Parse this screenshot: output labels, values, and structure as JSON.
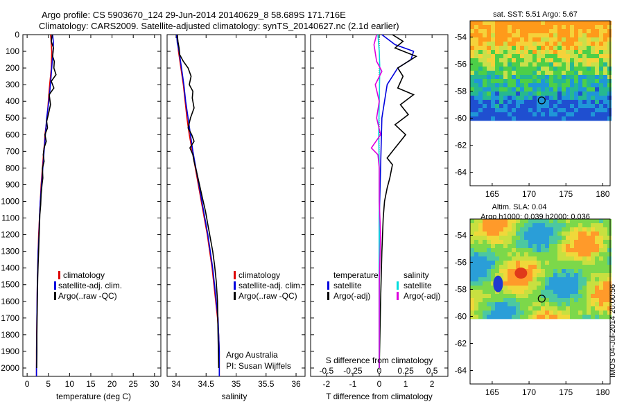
{
  "header": {
    "line1": "Argo profile: CS 5903670_124 29-Jun-2014 20140629_8 58.689S 171.716E",
    "line2": "Climatology: CARS2009. Satellite-adjusted climatology: synTS_20140627.nc (2.1d earlier)"
  },
  "footer": {
    "stamp": "IMOS 04-Jul-2014 20:00:56",
    "credit_line1": "Argo Australia",
    "credit_line2": "PI: Susan Wijffels"
  },
  "colors": {
    "climatology": "#dd0000",
    "satellite": "#0000dd",
    "argo": "#000000",
    "salinity_satellite": "#00dddd",
    "salinity_argo": "#dd00dd"
  },
  "chart_data": [
    {
      "type": "line",
      "panel": "temperature",
      "xlabel": "temperature (deg C)",
      "ylabel": "",
      "xlim": [
        -1,
        31.5
      ],
      "ylim": [
        2050,
        0
      ],
      "xticks": [
        "0",
        "5",
        "10",
        "15",
        "20",
        "25",
        "30"
      ],
      "yticks": [
        "0",
        "100",
        "200",
        "300",
        "400",
        "500",
        "600",
        "700",
        "800",
        "900",
        "1000",
        "1100",
        "1200",
        "1300",
        "1400",
        "1500",
        "1600",
        "1700",
        "1800",
        "1900",
        "2000"
      ],
      "legend": [
        "climatology",
        "satellite-adj. clim.",
        "Argo(..raw -QC)"
      ],
      "legend_position": "lower-center",
      "series": [
        {
          "name": "climatology",
          "color": "#dd0000",
          "x": [
            5.5,
            5.6,
            5.8,
            5.7,
            5.3,
            5.0,
            4.7,
            4.2,
            4.1,
            3.9,
            3.6,
            3.3,
            3.1,
            2.9,
            2.7,
            2.6,
            2.5,
            2.4,
            2.3,
            2.2,
            2.2,
            2.2
          ],
          "y": [
            0,
            20,
            100,
            200,
            300,
            400,
            500,
            600,
            650,
            700,
            800,
            900,
            1000,
            1100,
            1200,
            1300,
            1400,
            1500,
            1700,
            1900,
            2000,
            2050
          ]
        },
        {
          "name": "satellite-adj. clim.",
          "color": "#0000dd",
          "x": [
            6.0,
            6.2,
            6.1,
            5.8,
            5.5,
            5.1,
            4.6,
            4.3,
            4.0,
            3.7,
            3.4,
            3.1,
            2.9,
            2.8,
            2.6,
            2.5,
            2.4,
            2.3,
            2.25,
            2.2,
            2.2
          ],
          "y": [
            0,
            50,
            100,
            200,
            300,
            400,
            500,
            600,
            700,
            800,
            900,
            1000,
            1100,
            1200,
            1300,
            1400,
            1500,
            1700,
            1900,
            2000,
            2050
          ]
        },
        {
          "name": "Argo(..raw -QC)",
          "color": "#000000",
          "x": [
            5.9,
            5.7,
            6.2,
            6.0,
            6.4,
            6.3,
            6.8,
            5.7,
            6.3,
            5.2,
            5.5,
            5.0,
            4.6,
            4.8,
            4.2,
            4.5,
            4.0,
            3.8,
            4.0,
            3.6,
            3.7,
            3.5,
            3.3,
            3.2,
            3.0,
            2.9,
            2.8,
            2.7,
            2.6,
            2.5,
            2.45,
            2.4,
            2.35,
            2.3,
            2.3,
            2.25
          ],
          "y": [
            0,
            40,
            80,
            130,
            160,
            200,
            240,
            280,
            320,
            360,
            420,
            480,
            520,
            560,
            600,
            640,
            680,
            720,
            760,
            800,
            860,
            900,
            960,
            1020,
            1080,
            1150,
            1220,
            1300,
            1380,
            1460,
            1540,
            1620,
            1700,
            1800,
            1900,
            2000
          ]
        }
      ]
    },
    {
      "type": "line",
      "panel": "salinity",
      "xlabel": "salinity",
      "ylabel": "",
      "xlim": [
        33.85,
        36.15
      ],
      "ylim": [
        2050,
        0
      ],
      "xticks": [
        "34",
        "34.5",
        "35",
        "35.5",
        "36"
      ],
      "legend": [
        "climatology",
        "satellite-adj. clim.",
        "Argo(..raw -QC)"
      ],
      "legend_position": "lower-center",
      "series": [
        {
          "name": "climatology",
          "color": "#dd0000",
          "x": [
            34.02,
            34.03,
            34.04,
            34.08,
            34.12,
            34.15,
            34.18,
            34.22,
            34.27,
            34.32,
            34.37,
            34.42,
            34.47,
            34.52,
            34.56,
            34.6,
            34.63,
            34.66,
            34.69,
            34.71,
            34.72,
            34.72
          ],
          "y": [
            0,
            50,
            100,
            200,
            300,
            400,
            500,
            600,
            700,
            800,
            900,
            1000,
            1100,
            1200,
            1300,
            1400,
            1500,
            1600,
            1700,
            1800,
            1900,
            2050
          ]
        },
        {
          "name": "satellite-adj. clim.",
          "color": "#0000dd",
          "x": [
            34.01,
            34.02,
            34.05,
            34.09,
            34.13,
            34.16,
            34.2,
            34.24,
            34.28,
            34.33,
            34.38,
            34.43,
            34.48,
            34.53,
            34.57,
            34.61,
            34.64,
            34.67,
            34.7,
            34.71,
            34.72,
            34.72
          ],
          "y": [
            0,
            50,
            100,
            200,
            300,
            400,
            500,
            600,
            700,
            800,
            900,
            1000,
            1100,
            1200,
            1300,
            1400,
            1500,
            1600,
            1700,
            1800,
            1900,
            2050
          ]
        },
        {
          "name": "Argo(..raw -QC)",
          "color": "#000000",
          "x": [
            34.02,
            34.03,
            34.05,
            34.06,
            34.12,
            34.2,
            34.25,
            34.22,
            34.28,
            34.27,
            34.3,
            34.24,
            34.2,
            34.26,
            34.3,
            34.23,
            34.28,
            34.3,
            34.34,
            34.39,
            34.44,
            34.49,
            34.53,
            34.57,
            34.61,
            34.64,
            34.67,
            34.69,
            34.7,
            34.71
          ],
          "y": [
            0,
            40,
            80,
            120,
            160,
            200,
            250,
            300,
            340,
            380,
            440,
            500,
            560,
            600,
            640,
            680,
            720,
            760,
            820,
            900,
            980,
            1060,
            1140,
            1220,
            1300,
            1380,
            1480,
            1600,
            1800,
            2000
          ]
        }
      ]
    },
    {
      "type": "line",
      "panel": "difference",
      "xlabel": "T difference from climatology",
      "xlabel_top": "S difference from climatology",
      "xlim": [
        -2.6,
        2.6
      ],
      "ylim": [
        2050,
        0
      ],
      "xticks": [
        "-2",
        "-1",
        "0",
        "1",
        "2"
      ],
      "xticks_salinity": [
        "-0.5",
        "-0.25",
        "0",
        "0.25",
        "0.5"
      ],
      "legend": [
        "temperature",
        "satellite",
        "Argo(-adj)",
        "salinity",
        "satellite",
        "Argo(-adj)"
      ],
      "legend_position": "lower-center",
      "series": [
        {
          "name": "satellite",
          "color": "#0000dd",
          "x": [
            0.1,
            0.6,
            1.3,
            1.2,
            0.7,
            0.3,
            0.1,
            0.05,
            0.0,
            0.0,
            0.0,
            0.0
          ],
          "y": [
            0,
            60,
            100,
            150,
            200,
            300,
            500,
            800,
            1100,
            1400,
            1700,
            2000
          ]
        },
        {
          "name": "Argo(-adj)",
          "color": "#000000",
          "x": [
            0.5,
            0.9,
            0.6,
            1.4,
            0.7,
            0.9,
            0.7,
            1.3,
            0.8,
            1.1,
            0.6,
            1.0,
            0.8,
            0.5,
            0.3,
            0.5,
            0.4,
            0.3,
            0.2,
            0.15,
            0.1,
            0.05,
            0.0
          ],
          "y": [
            0,
            40,
            80,
            130,
            200,
            250,
            320,
            360,
            420,
            480,
            540,
            600,
            640,
            700,
            740,
            780,
            860,
            920,
            1000,
            1100,
            1300,
            1600,
            2000
          ]
        },
        {
          "name": "satellite",
          "color": "#00dddd",
          "x": [
            -0.05,
            0.0,
            0.02,
            0.0,
            -0.02,
            0.0,
            0.0,
            0.0,
            0.0,
            0.0
          ],
          "y": [
            0,
            100,
            200,
            400,
            600,
            800,
            1000,
            1400,
            1800,
            2000
          ]
        },
        {
          "name": "Argo(-adj)",
          "color": "#dd00dd",
          "x": [
            -0.1,
            -0.2,
            -0.1,
            0.1,
            -0.15,
            0.0,
            -0.1,
            0.05,
            -0.3,
            -0.05,
            0.0,
            0.0,
            0.05,
            0.0,
            0.0
          ],
          "y": [
            0,
            60,
            160,
            220,
            300,
            400,
            500,
            600,
            680,
            720,
            800,
            1000,
            1200,
            1500,
            2000
          ]
        }
      ]
    },
    {
      "type": "heatmap",
      "panel": "sst-map",
      "title": "sat. SST: 5.51  Argo: 5.67",
      "xlim": [
        162,
        181
      ],
      "ylim": [
        -65,
        -52.8
      ],
      "xticks": [
        "165",
        "170",
        "175",
        "180"
      ],
      "yticks": [
        "-54",
        "-56",
        "-58",
        "-60",
        "-62",
        "-64"
      ],
      "marker": {
        "lon": 171.716,
        "lat": -58.689
      },
      "data_extent_lat": [
        -60.2,
        -52.8
      ]
    },
    {
      "type": "heatmap",
      "panel": "sla-map",
      "title": "Altim. SLA: 0.04",
      "subtitle": "Argo h1000: 0.039  h2000: 0.036",
      "xlim": [
        162,
        181
      ],
      "ylim": [
        -65,
        -52.8
      ],
      "xticks": [
        "165",
        "170",
        "175",
        "180"
      ],
      "yticks": [
        "-54",
        "-56",
        "-58",
        "-60",
        "-62",
        "-64"
      ],
      "marker": {
        "lon": 171.716,
        "lat": -58.689
      },
      "data_extent_lat": [
        -60.2,
        -52.8
      ]
    }
  ]
}
